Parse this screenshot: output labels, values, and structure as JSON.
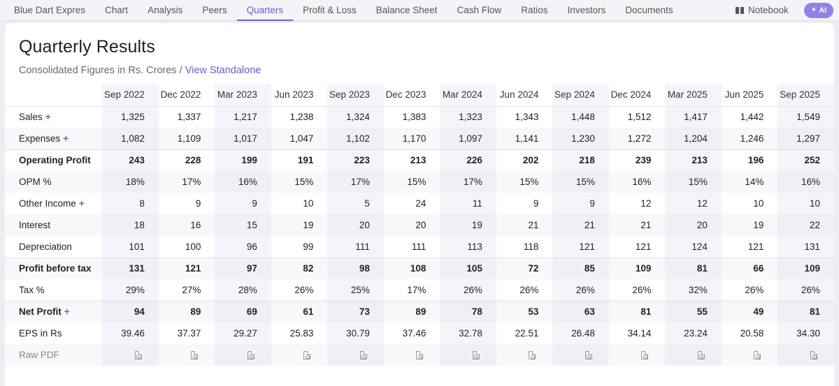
{
  "nav": {
    "tabs": [
      "Blue Dart Expres",
      "Chart",
      "Analysis",
      "Peers",
      "Quarters",
      "Profit & Loss",
      "Balance Sheet",
      "Cash Flow",
      "Ratios",
      "Investors",
      "Documents"
    ],
    "active_tab": "Quarters",
    "notebook_label": "Notebook",
    "ai_label": "AI"
  },
  "section": {
    "title": "Quarterly Results",
    "subtitle_prefix": "Consolidated Figures in Rs. Crores / ",
    "subtitle_link": "View Standalone"
  },
  "table": {
    "columns": [
      "Sep 2022",
      "Dec 2022",
      "Mar 2023",
      "Jun 2023",
      "Sep 2023",
      "Dec 2023",
      "Mar 2024",
      "Jun 2024",
      "Sep 2024",
      "Dec 2024",
      "Mar 2025",
      "Jun 2025",
      "Sep 2025"
    ],
    "rows": [
      {
        "label": "Sales",
        "expandable": true,
        "bold": false,
        "values": [
          "1,325",
          "1,337",
          "1,217",
          "1,238",
          "1,324",
          "1,383",
          "1,323",
          "1,343",
          "1,448",
          "1,512",
          "1,417",
          "1,442",
          "1,549"
        ]
      },
      {
        "label": "Expenses",
        "expandable": true,
        "bold": false,
        "values": [
          "1,082",
          "1,109",
          "1,017",
          "1,047",
          "1,102",
          "1,170",
          "1,097",
          "1,141",
          "1,230",
          "1,272",
          "1,204",
          "1,246",
          "1,297"
        ]
      },
      {
        "label": "Operating Profit",
        "expandable": false,
        "bold": true,
        "values": [
          "243",
          "228",
          "199",
          "191",
          "223",
          "213",
          "226",
          "202",
          "218",
          "239",
          "213",
          "196",
          "252"
        ]
      },
      {
        "label": "OPM %",
        "expandable": false,
        "bold": false,
        "values": [
          "18%",
          "17%",
          "16%",
          "15%",
          "17%",
          "15%",
          "17%",
          "15%",
          "15%",
          "16%",
          "15%",
          "14%",
          "16%"
        ]
      },
      {
        "label": "Other Income",
        "expandable": true,
        "bold": false,
        "values": [
          "8",
          "9",
          "9",
          "10",
          "5",
          "24",
          "11",
          "9",
          "9",
          "12",
          "12",
          "10",
          "10"
        ]
      },
      {
        "label": "Interest",
        "expandable": false,
        "bold": false,
        "values": [
          "18",
          "16",
          "15",
          "19",
          "20",
          "20",
          "19",
          "21",
          "21",
          "21",
          "20",
          "19",
          "22"
        ]
      },
      {
        "label": "Depreciation",
        "expandable": false,
        "bold": false,
        "values": [
          "101",
          "100",
          "96",
          "99",
          "111",
          "111",
          "113",
          "118",
          "121",
          "121",
          "124",
          "121",
          "131"
        ]
      },
      {
        "label": "Profit before tax",
        "expandable": false,
        "bold": true,
        "values": [
          "131",
          "121",
          "97",
          "82",
          "98",
          "108",
          "105",
          "72",
          "85",
          "109",
          "81",
          "66",
          "109"
        ]
      },
      {
        "label": "Tax %",
        "expandable": false,
        "bold": false,
        "values": [
          "29%",
          "27%",
          "28%",
          "26%",
          "25%",
          "17%",
          "26%",
          "26%",
          "26%",
          "26%",
          "32%",
          "26%",
          "26%"
        ]
      },
      {
        "label": "Net Profit",
        "expandable": true,
        "bold": true,
        "values": [
          "94",
          "89",
          "69",
          "61",
          "73",
          "89",
          "78",
          "53",
          "63",
          "81",
          "55",
          "49",
          "81"
        ]
      },
      {
        "label": "EPS in Rs",
        "expandable": false,
        "bold": false,
        "values": [
          "39.46",
          "37.37",
          "29.27",
          "25.83",
          "30.79",
          "37.46",
          "32.78",
          "22.51",
          "26.48",
          "34.14",
          "23.24",
          "20.58",
          "34.30"
        ]
      }
    ],
    "raw_pdf_label": "Raw PDF",
    "plus_symbol": "+"
  },
  "colors": {
    "accent": "#6a5fd6",
    "ai_button": "#8f82e6",
    "shaded_column": "#f4f5fa"
  },
  "icons": {
    "notebook": "book-icon",
    "ai": "sparkle-icon",
    "raw_pdf": "pdf-file-icon"
  }
}
